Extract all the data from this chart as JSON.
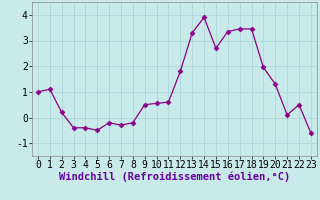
{
  "x": [
    0,
    1,
    2,
    3,
    4,
    5,
    6,
    7,
    8,
    9,
    10,
    11,
    12,
    13,
    14,
    15,
    16,
    17,
    18,
    19,
    20,
    21,
    22,
    23
  ],
  "y": [
    1.0,
    1.1,
    0.2,
    -0.4,
    -0.4,
    -0.5,
    -0.2,
    -0.3,
    -0.2,
    0.5,
    0.55,
    0.6,
    1.8,
    3.3,
    3.9,
    2.7,
    3.35,
    3.45,
    3.45,
    1.95,
    1.3,
    0.1,
    0.5,
    -0.6
  ],
  "line_color": "#8B008B",
  "marker": "D",
  "marker_size": 2.5,
  "bg_color": "#c8eaea",
  "grid_color": "#b0d8d8",
  "xlabel": "Windchill (Refroidissement éolien,°C)",
  "ylim": [
    -1.5,
    4.5
  ],
  "xlim": [
    -0.5,
    23.5
  ],
  "yticks": [
    -1,
    0,
    1,
    2,
    3,
    4
  ],
  "xticks": [
    0,
    1,
    2,
    3,
    4,
    5,
    6,
    7,
    8,
    9,
    10,
    11,
    12,
    13,
    14,
    15,
    16,
    17,
    18,
    19,
    20,
    21,
    22,
    23
  ],
  "xlabel_fontsize": 7.5,
  "tick_fontsize": 7
}
